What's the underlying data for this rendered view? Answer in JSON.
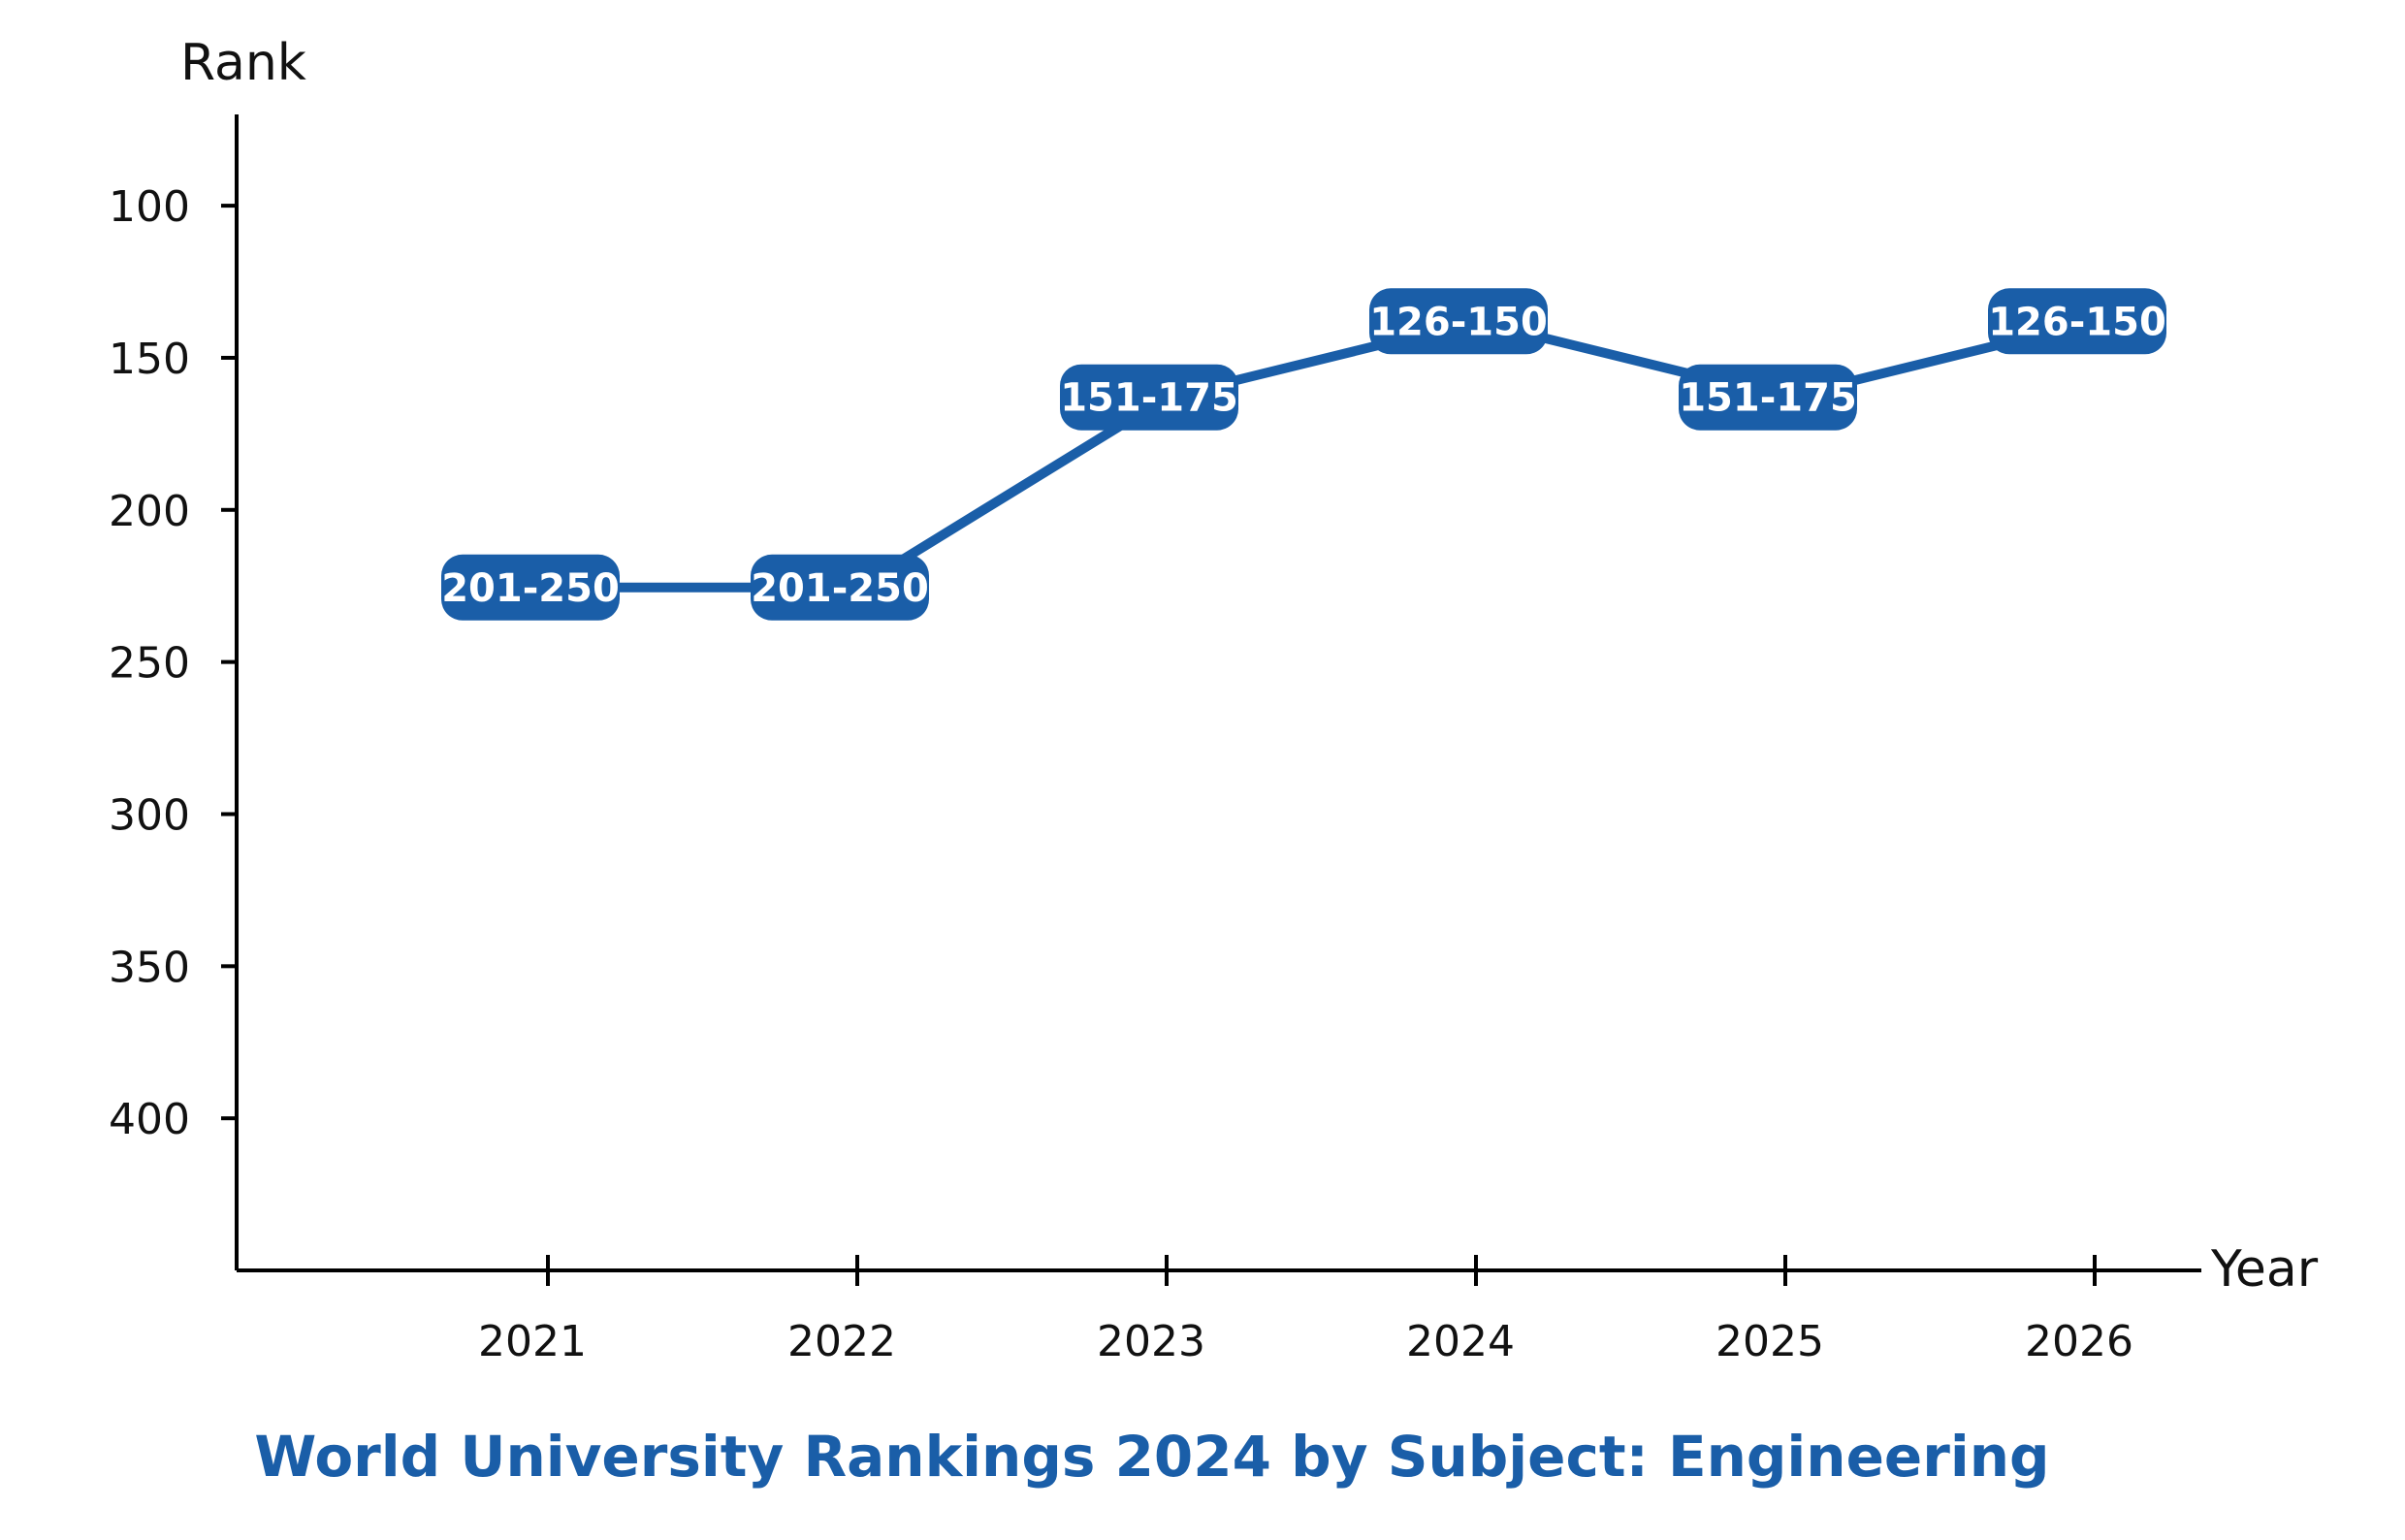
{
  "colors": {
    "accent": "#1a5ea8",
    "axis": "#000000",
    "label_text": "#ffffff"
  },
  "chart_data": {
    "type": "line",
    "title": "World University Rankings 2024 by Subject: Engineering",
    "xlabel": "Year",
    "ylabel": "Rank",
    "y_inverted": true,
    "ylim": [
      70,
      450
    ],
    "yticks": [
      100,
      150,
      200,
      250,
      300,
      350,
      400
    ],
    "grid": false,
    "legend": "none",
    "categories": [
      "2021",
      "2022",
      "2023",
      "2024",
      "2025",
      "2026"
    ],
    "series": [
      {
        "values": [
          225.5,
          225.5,
          163,
          138,
          163,
          138
        ],
        "labels": [
          "201-250",
          "201-250",
          "151-175",
          "126-150",
          "151-175",
          "126-150"
        ]
      }
    ]
  }
}
